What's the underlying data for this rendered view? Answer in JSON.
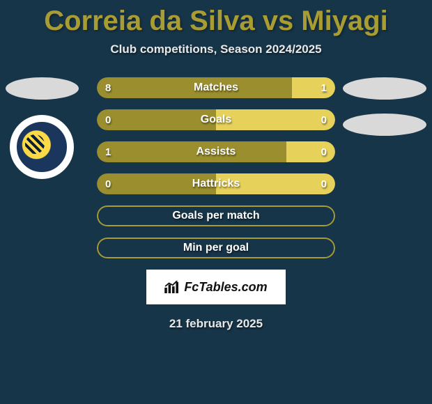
{
  "background_color": "#173548",
  "title": {
    "text": "Correia da Silva vs Miyagi",
    "color": "#a89c32",
    "fontsize": 40
  },
  "subtitle": "Club competitions, Season 2024/2025",
  "colors": {
    "player1_bar": "#9a8e2e",
    "player2_bar": "#e6d15b",
    "empty_border": "#a89c32",
    "text": "#ffffff"
  },
  "stats": [
    {
      "label": "Matches",
      "p1": "8",
      "p2": "1",
      "p1_share": 0.82,
      "has_values": true
    },
    {
      "label": "Goals",
      "p1": "0",
      "p2": "0",
      "p1_share": 0.5,
      "has_values": true
    },
    {
      "label": "Assists",
      "p1": "1",
      "p2": "0",
      "p1_share": 0.795,
      "has_values": true
    },
    {
      "label": "Hattricks",
      "p1": "0",
      "p2": "0",
      "p1_share": 0.5,
      "has_values": true
    },
    {
      "label": "Goals per match",
      "p1": "",
      "p2": "",
      "p1_share": 0,
      "has_values": false
    },
    {
      "label": "Min per goal",
      "p1": "",
      "p2": "",
      "p1_share": 0,
      "has_values": false
    }
  ],
  "footer": {
    "site_label": "FcTables.com",
    "date": "21 february 2025"
  }
}
